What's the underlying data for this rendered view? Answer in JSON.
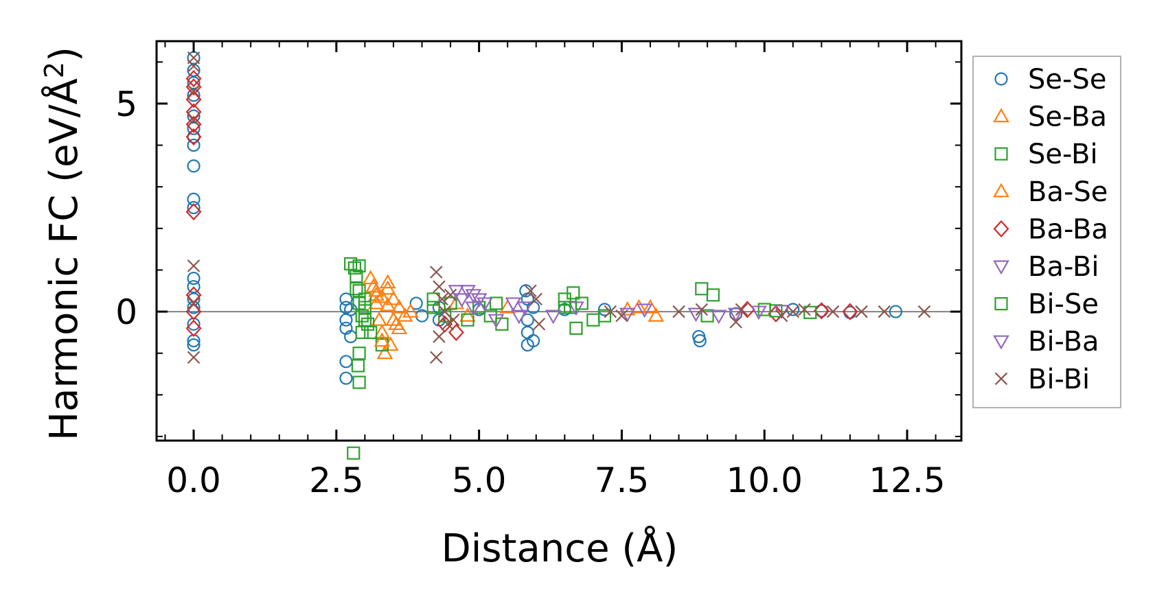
{
  "chart_data": {
    "type": "scatter",
    "title": "",
    "xlabel": "Distance (Å)",
    "ylabel_main": "Harmonic FC (eV/Å",
    "ylabel_sup": "2",
    "ylabel_close": ")",
    "xlim": [
      -0.65,
      13.45
    ],
    "ylim": [
      -3.1,
      6.5
    ],
    "x_ticks": [
      {
        "value": 0.0,
        "label": "0.0"
      },
      {
        "value": 2.5,
        "label": "2.5"
      },
      {
        "value": 5.0,
        "label": "5.0"
      },
      {
        "value": 7.5,
        "label": "7.5"
      },
      {
        "value": 10.0,
        "label": "10.0"
      },
      {
        "value": 12.5,
        "label": "12.5"
      }
    ],
    "y_ticks": [
      {
        "value": 0,
        "label": "0"
      },
      {
        "value": 5,
        "label": "5"
      }
    ],
    "zero_line": 0,
    "legend_position": "outside-right",
    "legend": [
      {
        "name": "Se-Se",
        "marker": "circle",
        "color": "#1f77b4"
      },
      {
        "name": "Se-Ba",
        "marker": "triangle-up",
        "color": "#ff7f0e"
      },
      {
        "name": "Se-Bi",
        "marker": "square",
        "color": "#2ca02c"
      },
      {
        "name": "Ba-Se",
        "marker": "triangle-up",
        "color": "#ff7f0e"
      },
      {
        "name": "Ba-Ba",
        "marker": "diamond",
        "color": "#d62728"
      },
      {
        "name": "Ba-Bi",
        "marker": "triangle-down",
        "color": "#9467bd"
      },
      {
        "name": "Bi-Se",
        "marker": "square",
        "color": "#2ca02c"
      },
      {
        "name": "Bi-Ba",
        "marker": "triangle-down",
        "color": "#9467bd"
      },
      {
        "name": "Bi-Bi",
        "marker": "x",
        "color": "#8c564b"
      }
    ],
    "series": [
      {
        "name": "Se-Se",
        "points": [
          [
            0,
            6.1
          ],
          [
            0,
            5.8
          ],
          [
            0,
            5.5
          ],
          [
            0,
            5.2
          ],
          [
            0,
            4.7
          ],
          [
            0,
            4.4
          ],
          [
            0,
            4.2
          ],
          [
            0,
            4.0
          ],
          [
            0,
            3.5
          ],
          [
            0,
            2.7
          ],
          [
            0,
            2.5
          ],
          [
            0,
            0.8
          ],
          [
            0,
            0.6
          ],
          [
            0,
            0.3
          ],
          [
            0,
            0.1
          ],
          [
            0,
            -0.3
          ],
          [
            0,
            -0.7
          ],
          [
            0,
            -0.8
          ],
          [
            2.67,
            0.3
          ],
          [
            2.67,
            0.1
          ],
          [
            2.67,
            -0.2
          ],
          [
            2.67,
            -0.4
          ],
          [
            2.67,
            -1.2
          ],
          [
            2.67,
            -1.6
          ],
          [
            2.75,
            0.05
          ],
          [
            2.75,
            -0.6
          ],
          [
            3.9,
            0.2
          ],
          [
            4.0,
            -0.1
          ],
          [
            4.3,
            0.1
          ],
          [
            4.3,
            -0.2
          ],
          [
            5.0,
            0.05
          ],
          [
            5.82,
            0.5
          ],
          [
            5.85,
            0.3
          ],
          [
            5.85,
            -0.2
          ],
          [
            5.85,
            -0.5
          ],
          [
            5.85,
            -0.8
          ],
          [
            5.95,
            0.1
          ],
          [
            5.95,
            -0.7
          ],
          [
            6.5,
            0.05
          ],
          [
            7.2,
            0.05
          ],
          [
            8.85,
            -0.6
          ],
          [
            8.87,
            -0.7
          ],
          [
            9.5,
            -0.05
          ],
          [
            10.5,
            0.05
          ],
          [
            11.0,
            0.02
          ],
          [
            11.5,
            -0.02
          ],
          [
            12.3,
            0.0
          ]
        ]
      },
      {
        "name": "Se-Ba",
        "points": [
          [
            3.1,
            0.8
          ],
          [
            3.15,
            0.6
          ],
          [
            3.2,
            0.4
          ],
          [
            3.2,
            0.2
          ],
          [
            3.25,
            -0.2
          ],
          [
            3.3,
            -0.5
          ],
          [
            3.35,
            -1.0
          ],
          [
            3.4,
            0.7
          ],
          [
            3.45,
            -0.8
          ],
          [
            3.5,
            0.3
          ],
          [
            3.55,
            -0.3
          ],
          [
            3.6,
            0.1
          ],
          [
            3.7,
            -0.1
          ],
          [
            3.8,
            0.0
          ],
          [
            4.6,
            0.2
          ],
          [
            4.8,
            -0.1
          ],
          [
            5.5,
            0.1
          ],
          [
            7.8,
            0.1
          ],
          [
            8.1,
            -0.1
          ]
        ]
      },
      {
        "name": "Se-Bi",
        "points": [
          [
            2.75,
            1.15
          ],
          [
            2.82,
            1.05
          ],
          [
            2.9,
            1.1
          ],
          [
            2.85,
            0.85
          ],
          [
            2.85,
            0.55
          ],
          [
            2.9,
            0.2
          ],
          [
            2.95,
            -0.1
          ],
          [
            2.95,
            -0.5
          ],
          [
            2.9,
            -1.0
          ],
          [
            2.88,
            -1.3
          ],
          [
            2.9,
            -1.7
          ],
          [
            2.8,
            -3.4
          ],
          [
            3.0,
            0.3
          ],
          [
            3.05,
            -0.3
          ],
          [
            3.3,
            -0.8
          ],
          [
            4.2,
            0.1
          ],
          [
            4.5,
            0.2
          ],
          [
            4.8,
            -0.2
          ],
          [
            5.0,
            0.1
          ],
          [
            5.2,
            -0.1
          ],
          [
            6.5,
            0.3
          ],
          [
            6.65,
            0.45
          ],
          [
            6.7,
            -0.4
          ],
          [
            6.6,
            0.1
          ],
          [
            7.0,
            -0.2
          ],
          [
            8.9,
            0.55
          ],
          [
            9.1,
            0.4
          ],
          [
            9.0,
            -0.1
          ],
          [
            10.0,
            0.05
          ]
        ]
      },
      {
        "name": "Ba-Se",
        "points": [
          [
            3.2,
            0.5
          ],
          [
            3.3,
            0.35
          ],
          [
            3.4,
            0.15
          ],
          [
            3.5,
            -0.2
          ],
          [
            3.6,
            -0.4
          ],
          [
            3.3,
            -0.7
          ],
          [
            3.4,
            0.55
          ],
          [
            7.6,
            0.05
          ],
          [
            8.0,
            0.1
          ]
        ]
      },
      {
        "name": "Ba-Ba",
        "points": [
          [
            0,
            5.6
          ],
          [
            0,
            5.4
          ],
          [
            0,
            5.1
          ],
          [
            0,
            4.8
          ],
          [
            0,
            4.5
          ],
          [
            0,
            4.2
          ],
          [
            0,
            2.4
          ],
          [
            0,
            0.4
          ],
          [
            0,
            0.0
          ],
          [
            0,
            -0.4
          ],
          [
            4.4,
            -0.3
          ],
          [
            4.6,
            -0.5
          ],
          [
            9.7,
            0.05
          ],
          [
            10.2,
            -0.05
          ],
          [
            11.0,
            0.02
          ],
          [
            11.5,
            0.0
          ]
        ]
      },
      {
        "name": "Ba-Bi",
        "points": [
          [
            4.6,
            0.5
          ],
          [
            4.7,
            0.3
          ],
          [
            4.8,
            0.5
          ],
          [
            4.9,
            0.1
          ],
          [
            5.0,
            0.3
          ],
          [
            5.6,
            0.2
          ],
          [
            5.7,
            -0.1
          ],
          [
            6.7,
            0.1
          ],
          [
            7.6,
            -0.05
          ],
          [
            9.2,
            -0.1
          ],
          [
            9.5,
            -0.05
          ],
          [
            9.9,
            0.0
          ]
        ]
      },
      {
        "name": "Bi-Se",
        "points": [
          [
            2.9,
            0.5
          ],
          [
            3.0,
            0.1
          ],
          [
            3.0,
            -0.2
          ],
          [
            3.1,
            -0.5
          ],
          [
            4.2,
            0.3
          ],
          [
            4.4,
            -0.1
          ],
          [
            5.3,
            0.2
          ],
          [
            5.4,
            -0.3
          ],
          [
            6.5,
            0.1
          ],
          [
            6.8,
            0.2
          ],
          [
            7.2,
            -0.1
          ],
          [
            10.2,
            0.02
          ],
          [
            10.8,
            -0.02
          ]
        ]
      },
      {
        "name": "Bi-Ba",
        "points": [
          [
            4.9,
            0.4
          ],
          [
            5.1,
            0.2
          ],
          [
            5.3,
            -0.2
          ],
          [
            5.8,
            0.1
          ],
          [
            6.3,
            -0.1
          ],
          [
            7.9,
            0.05
          ],
          [
            8.8,
            -0.05
          ],
          [
            10.3,
            0.02
          ]
        ]
      },
      {
        "name": "Bi-Bi",
        "points": [
          [
            0,
            6.1
          ],
          [
            0,
            5.9
          ],
          [
            0,
            5.3
          ],
          [
            0,
            4.6
          ],
          [
            0,
            1.1
          ],
          [
            0,
            0.2
          ],
          [
            0,
            -1.1
          ],
          [
            4.25,
            0.95
          ],
          [
            4.3,
            0.6
          ],
          [
            4.35,
            0.3
          ],
          [
            4.4,
            0.0
          ],
          [
            4.45,
            -0.3
          ],
          [
            4.3,
            -0.6
          ],
          [
            4.25,
            -1.1
          ],
          [
            4.5,
            0.4
          ],
          [
            4.55,
            -0.2
          ],
          [
            5.9,
            0.5
          ],
          [
            6.0,
            0.3
          ],
          [
            6.05,
            -0.3
          ],
          [
            7.3,
            0.0
          ],
          [
            7.5,
            -0.1
          ],
          [
            8.5,
            0.0
          ],
          [
            8.9,
            0.05
          ],
          [
            9.5,
            -0.25
          ],
          [
            9.6,
            0.05
          ],
          [
            10.3,
            -0.1
          ],
          [
            10.5,
            0.0
          ],
          [
            10.7,
            0.05
          ],
          [
            11.2,
            0.0
          ],
          [
            11.7,
            0.0
          ],
          [
            12.1,
            0.0
          ],
          [
            12.8,
            0.0
          ]
        ]
      }
    ]
  }
}
